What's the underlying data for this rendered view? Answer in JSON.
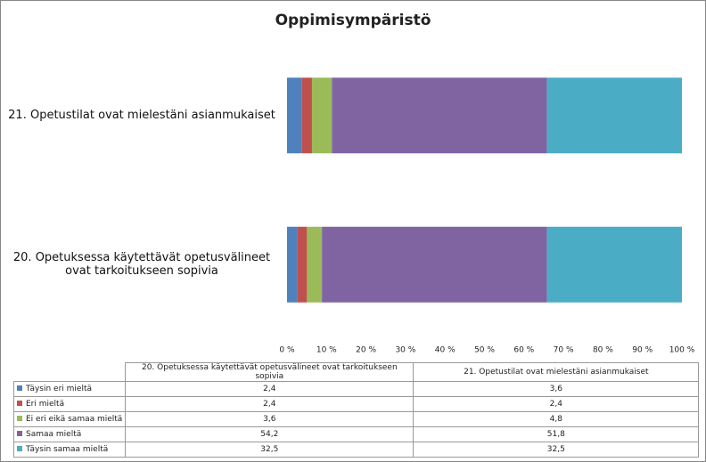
{
  "chart_data": {
    "type": "bar",
    "orientation": "horizontal",
    "stacked": "percent",
    "title": "Oppimisympäristö",
    "categories": [
      "20. Opetuksessa käytettävät opetusvälineet ovat tarkoitukseen sopivia",
      "21. Opetustilat ovat mielestäni asianmukaiset"
    ],
    "series": [
      {
        "name": "Täysin eri mieltä",
        "color": "#4f81bd",
        "values": [
          2.4,
          3.6
        ],
        "value_labels": [
          "2,4",
          "3,6"
        ]
      },
      {
        "name": "Eri mieltä",
        "color": "#c0504d",
        "values": [
          2.4,
          2.4
        ],
        "value_labels": [
          "2,4",
          "2,4"
        ]
      },
      {
        "name": "Ei eri eikä samaa mieltä",
        "color": "#9bbb59",
        "values": [
          3.6,
          4.8
        ],
        "value_labels": [
          "3,6",
          "4,8"
        ]
      },
      {
        "name": "Samaa mieltä",
        "color": "#8064a2",
        "values": [
          54.2,
          51.8
        ],
        "value_labels": [
          "54,2",
          "51,8"
        ]
      },
      {
        "name": "Täysin samaa mieltä",
        "color": "#4bacc6",
        "values": [
          32.5,
          32.5
        ],
        "value_labels": [
          "32,5",
          "32,5"
        ]
      }
    ],
    "xlim": [
      0,
      100
    ],
    "xticks": [
      {
        "value": 0,
        "label": "0 %"
      },
      {
        "value": 10,
        "label": "10 %"
      },
      {
        "value": 20,
        "label": "20 %"
      },
      {
        "value": 30,
        "label": "30 %"
      },
      {
        "value": 40,
        "label": "40 %"
      },
      {
        "value": 50,
        "label": "50 %"
      },
      {
        "value": 60,
        "label": "60 %"
      },
      {
        "value": 70,
        "label": "70 %"
      },
      {
        "value": 80,
        "label": "80 %"
      },
      {
        "value": 90,
        "label": "90 %"
      },
      {
        "value": 100,
        "label": "100 %"
      }
    ],
    "data_table": true
  }
}
